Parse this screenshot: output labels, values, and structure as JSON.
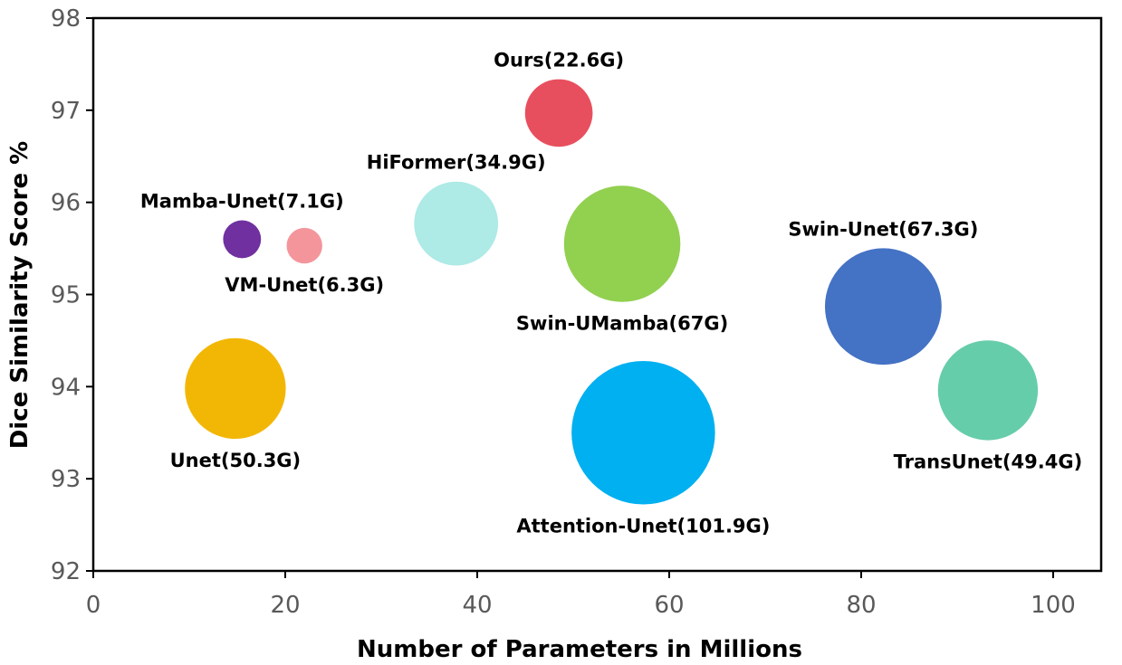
{
  "chart_data": {
    "type": "scatter",
    "subtype": "bubble",
    "title": "",
    "xlabel": "Number of Parameters in Millions",
    "ylabel": "Dice Similarity Score %",
    "xlim": [
      0,
      105
    ],
    "ylim": [
      92,
      98
    ],
    "xticks": [
      0,
      20,
      40,
      60,
      80,
      100
    ],
    "yticks": [
      92,
      93,
      94,
      95,
      96,
      97,
      98
    ],
    "size_unit": "GFLOPs",
    "points": [
      {
        "label": "Mamba-Unet(7.1G)",
        "x": 15.5,
        "y": 95.6,
        "flops": 7.1,
        "color": "#7030a0",
        "label_pos": "above"
      },
      {
        "label": "VM-Unet(6.3G)",
        "x": 22.0,
        "y": 95.53,
        "flops": 6.3,
        "color": "#f4959c",
        "label_pos": "below"
      },
      {
        "label": "HiFormer(34.9G)",
        "x": 37.8,
        "y": 95.77,
        "flops": 34.9,
        "color": "#aeeae6",
        "label_pos": "above"
      },
      {
        "label": "Ours(22.6G)",
        "x": 48.5,
        "y": 96.97,
        "flops": 22.6,
        "color": "#e84f5e",
        "label_pos": "above"
      },
      {
        "label": "Swin-UMamba(67G)",
        "x": 55.1,
        "y": 95.55,
        "flops": 67,
        "color": "#92d050",
        "label_pos": "below"
      },
      {
        "label": "Unet(50.3G)",
        "x": 14.8,
        "y": 93.98,
        "flops": 50.3,
        "color": "#f2b705",
        "label_pos": "below"
      },
      {
        "label": "Attention-Unet(101.9G)",
        "x": 57.3,
        "y": 93.5,
        "flops": 101.9,
        "color": "#00b0f0",
        "label_pos": "below"
      },
      {
        "label": "Swin-Unet(67.3G)",
        "x": 82.3,
        "y": 94.87,
        "flops": 67.3,
        "color": "#4472c4",
        "label_pos": "above"
      },
      {
        "label": "TransUnet(49.4G)",
        "x": 93.2,
        "y": 93.96,
        "flops": 49.4,
        "color": "#66cdaa",
        "label_pos": "below"
      }
    ]
  }
}
